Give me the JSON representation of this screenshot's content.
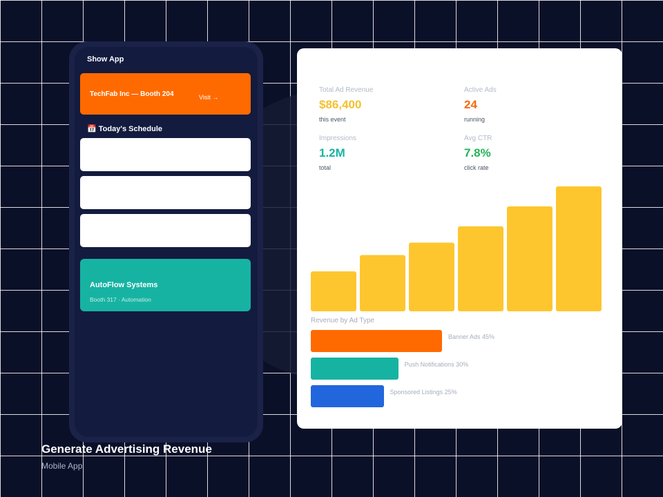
{
  "phone": {
    "app_title": "Show App",
    "featured": {
      "name": "TechFab Inc — Booth 204",
      "cta": "Visit →"
    },
    "schedule": {
      "title": "📅 Today's Schedule"
    },
    "exhibitor": {
      "name": "AutoFlow Systems",
      "detail": "Booth 317 · Automation"
    }
  },
  "stats": {
    "revenue": {
      "label": "Total Ad Revenue",
      "value": "$86,400",
      "sub": "this event",
      "color": "#f5c12e"
    },
    "active_ads": {
      "label": "Active Ads",
      "value": "24",
      "sub": "running",
      "color": "#f26b0f"
    },
    "impressions": {
      "label": "Impressions",
      "value": "1.2M",
      "sub": "total",
      "color": "#17b3a2"
    },
    "ctr": {
      "label": "Avg CTR",
      "value": "7.8%",
      "sub": "click rate",
      "color": "#22b557"
    }
  },
  "chart_data": [
    {
      "type": "bar",
      "values": [
        32,
        45,
        55,
        68,
        84,
        100
      ],
      "ylim": [
        0,
        100
      ],
      "color": "#fec62e"
    },
    {
      "type": "bar",
      "title": "Revenue by Ad Type",
      "orientation": "horizontal",
      "categories": [
        "Banner Ads",
        "Push Notifications",
        "Sponsored Listings"
      ],
      "values": [
        45,
        30,
        25
      ],
      "labels": [
        "Banner Ads 45%",
        "Push Notifications 30%",
        "Sponsored Listings 25%"
      ],
      "colors": [
        "#ff6a00",
        "#17b3a2",
        "#2266dd"
      ]
    }
  ],
  "footer": {
    "title": "Generate Advertising Revenue",
    "subtitle": "Mobile App"
  }
}
